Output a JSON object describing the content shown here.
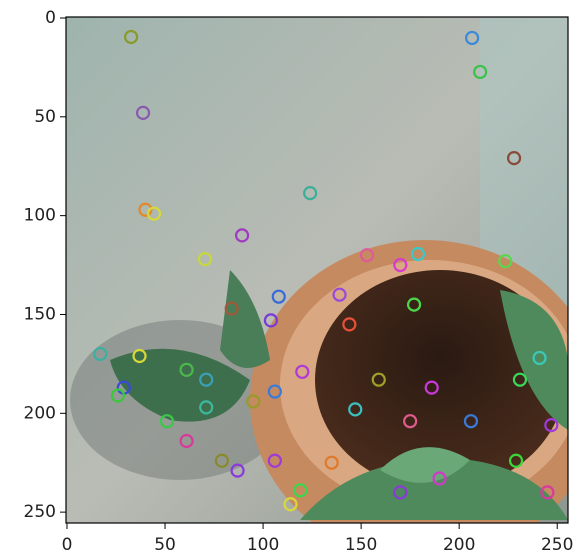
{
  "chart_data": {
    "type": "image",
    "xlim": [
      -0.5,
      255.5
    ],
    "ylim": [
      255.5,
      -0.5
    ],
    "xticks": [
      0,
      50,
      100,
      150,
      200,
      250
    ],
    "yticks": [
      0,
      50,
      100,
      150,
      200,
      250
    ],
    "keypoints": {
      "x": [
        32.7,
        206.6,
        210.7,
        38.8,
        228,
        124,
        40,
        44.4,
        89.3,
        70.4,
        153,
        179,
        170,
        223.5,
        108,
        84,
        139,
        177,
        144,
        104,
        17,
        37,
        29,
        26,
        61,
        71,
        95,
        106,
        120,
        159,
        186,
        51,
        71,
        61,
        79,
        87,
        106,
        135,
        190,
        170,
        119,
        229,
        245,
        247,
        241,
        231,
        206,
        175,
        147,
        114
      ],
      "y": [
        9.6,
        10.1,
        27.3,
        48,
        70.9,
        88.6,
        97,
        99,
        110,
        122,
        120,
        119.4,
        125,
        123,
        141,
        147,
        140,
        145,
        155,
        153,
        170,
        171,
        187,
        191,
        178,
        183,
        194,
        189,
        179,
        183,
        187,
        204,
        197,
        214,
        224,
        229,
        224,
        225,
        233,
        240,
        239,
        224,
        240,
        206,
        172,
        183,
        204,
        204,
        198,
        246
      ],
      "colors": [
        "#8a9a2a",
        "#3a8ad8",
        "#3ac24a",
        "#8a5ab0",
        "#8a4a3a",
        "#3ab09a",
        "#e08a2a",
        "#d8d83a",
        "#a03ac0",
        "#c8d83a",
        "#e05a9a",
        "#3ac8c8",
        "#d83ad0",
        "#5ad84a",
        "#3a6ad8",
        "#a05a3a",
        "#9a4ad8",
        "#4ad84a",
        "#e8503a",
        "#7a3ad8",
        "#3ab0a0",
        "#d8d83a",
        "#3a4ad8",
        "#3ac83a",
        "#4ab84a",
        "#3aa0b8",
        "#9a9a2a",
        "#3a7ad8",
        "#b03ad8",
        "#a0a02a",
        "#c83ad8",
        "#3ac84a",
        "#3ab8a0",
        "#d83a9a",
        "#8a8a2a",
        "#8a3ad8",
        "#a03ad8",
        "#e07a2a",
        "#d03ac8",
        "#8a3ad8",
        "#3ad84a",
        "#3ad83a",
        "#d83aa0",
        "#a03ad8",
        "#3ac8b8",
        "#3ad85a",
        "#3a7ad8",
        "#e05a8a",
        "#3ac0c0",
        "#d8d83a"
      ]
    }
  }
}
